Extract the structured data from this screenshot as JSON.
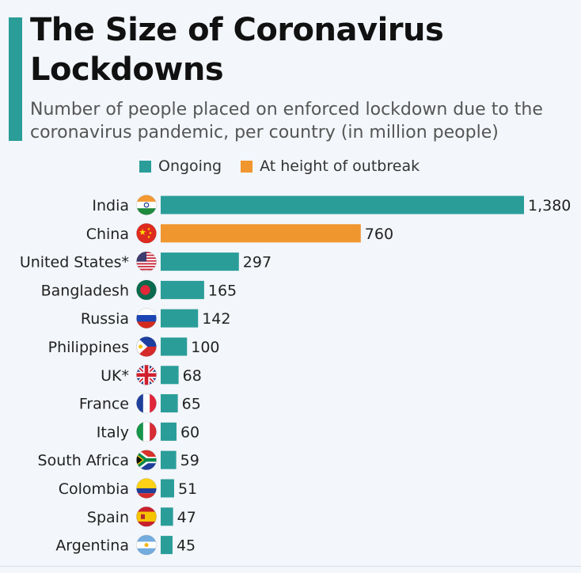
{
  "title": "The Size of Coronavirus Lockdowns",
  "subtitle": "Number of people placed on enforced lockdown due to the coronavirus pandemic, per country (in million people)",
  "colors": {
    "ongoing": "#2a9d99",
    "height": "#f0962e",
    "accent": "#2a9d99"
  },
  "legend": {
    "ongoing_label": "Ongoing",
    "height_label": "At height of outbreak"
  },
  "chart_data": {
    "type": "bar",
    "orientation": "horizontal",
    "title": "The Size of Coronavirus Lockdowns",
    "xlabel": "",
    "ylabel": "",
    "xlim": [
      0,
      1380
    ],
    "grid": false,
    "legend_placement": "top",
    "categories": [
      "India",
      "China",
      "United States*",
      "Bangladesh",
      "Russia",
      "Philippines",
      "UK*",
      "France",
      "Italy",
      "South Africa",
      "Colombia",
      "Spain",
      "Argentina"
    ],
    "values": [
      1380,
      760,
      297,
      165,
      142,
      100,
      68,
      65,
      60,
      59,
      51,
      47,
      45
    ],
    "value_labels": [
      "1,380",
      "760",
      "297",
      "165",
      "142",
      "100",
      "68",
      "65",
      "60",
      "59",
      "51",
      "47",
      "45"
    ],
    "status": [
      "Ongoing",
      "At height of outbreak",
      "Ongoing",
      "Ongoing",
      "Ongoing",
      "Ongoing",
      "Ongoing",
      "Ongoing",
      "Ongoing",
      "Ongoing",
      "Ongoing",
      "Ongoing",
      "Ongoing"
    ],
    "flag_icons": [
      "india-flag-icon",
      "china-flag-icon",
      "united-states-flag-icon",
      "bangladesh-flag-icon",
      "russia-flag-icon",
      "philippines-flag-icon",
      "uk-flag-icon",
      "france-flag-icon",
      "italy-flag-icon",
      "south-africa-flag-icon",
      "colombia-flag-icon",
      "spain-flag-icon",
      "argentina-flag-icon"
    ]
  }
}
